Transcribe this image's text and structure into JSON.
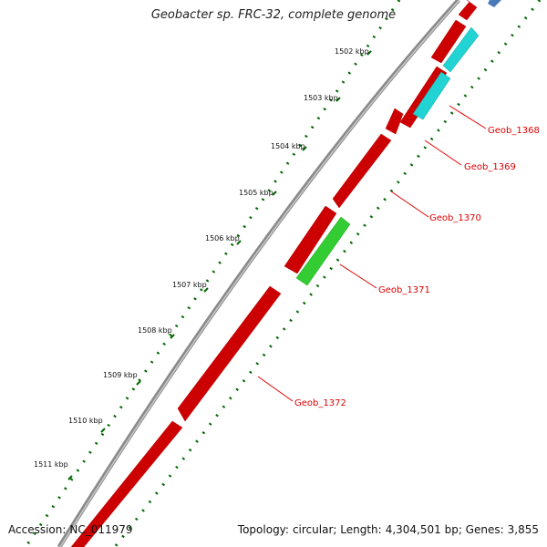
{
  "title": "Geobacter sp. FRC-32, complete genome",
  "footer": {
    "accession_label": "Accession:",
    "accession": "NC_011979",
    "topology_label": "Topology:",
    "topology": "circular",
    "length_label": "Length:",
    "length": "4,304,501 bp",
    "genes_label": "Genes:",
    "genes": "3,855"
  },
  "colors": {
    "backbone": "#8a8a8a",
    "gene_red": "#ff0000",
    "gene_cyan": "#22d3d3",
    "gene_green": "#33cc33",
    "gene_blue": "#4a7ab8",
    "tick_green": "#006600",
    "label_red": "#dd0000"
  },
  "kbp_labels": [
    "1502 kbp",
    "1503 kbp",
    "1504 kbp",
    "1505 kbp",
    "1506 kbp",
    "1507 kbp",
    "1508 kbp",
    "1509 kbp",
    "1510 kbp",
    "1511 kbp"
  ],
  "genes": [
    {
      "id": "Geob_1368",
      "color": "cyan"
    },
    {
      "id": "Geob_1369",
      "color": "cyan"
    },
    {
      "id": "Geob_1370",
      "color": "red"
    },
    {
      "id": "Geob_1371",
      "color": "green"
    },
    {
      "id": "Geob_1372",
      "color": "red"
    }
  ]
}
